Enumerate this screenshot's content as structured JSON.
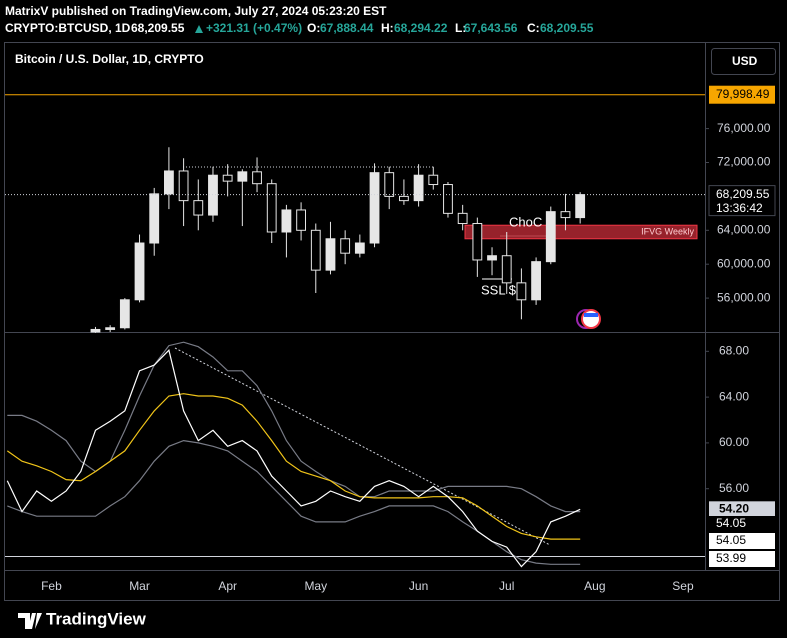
{
  "header": {
    "publisher": "MatrixV published on TradingView.com, July 27, 2024 05:23:20 EST",
    "symbol": "CRYPTO:BTCUSD, 1D",
    "price": "68,209.55",
    "change": "+321.31 (+0.47%)",
    "ohlc": [
      {
        "key": "O:",
        "value": "67,888.44"
      },
      {
        "key": "H:",
        "value": "68,294.22"
      },
      {
        "key": "L:",
        "value": "67,643.56"
      },
      {
        "key": "C:",
        "value": "68,209.55"
      }
    ],
    "legend": "Bitcoin / U.S. Dollar, 1D, CRYPTO",
    "currency": "USD"
  },
  "chart_data": [
    {
      "type": "candlestick",
      "color": "#e6e6e6",
      "categories": [
        null,
        null,
        null,
        "Feb",
        null,
        null,
        null,
        null,
        null,
        "Mar",
        null,
        null,
        null,
        null,
        null,
        "Apr",
        null,
        null,
        null,
        null,
        null,
        "May",
        null,
        null,
        null,
        null,
        null,
        null,
        "Jun",
        null,
        null,
        null,
        null,
        null,
        "Jul",
        null,
        null,
        null,
        null,
        null,
        "Aug",
        null,
        null,
        null,
        null,
        null,
        "Sep",
        null
      ],
      "open": [
        null,
        null,
        null,
        null,
        null,
        null,
        52000,
        52300,
        52500,
        55800,
        62500,
        68300,
        71000,
        67500,
        65800,
        70500,
        69800,
        70900,
        69500,
        63800,
        66400,
        64000,
        59300,
        63000,
        61300,
        62500,
        70800,
        68000,
        67500,
        70500,
        69400,
        66000,
        64800,
        60500,
        61000,
        57800,
        55800,
        60300,
        66200,
        65500,
        null,
        null,
        null,
        null,
        null,
        null,
        null,
        null
      ],
      "high": [
        null,
        null,
        null,
        null,
        null,
        null,
        52600,
        52800,
        56000,
        63500,
        69000,
        73800,
        72500,
        70000,
        71500,
        71800,
        71200,
        72600,
        70000,
        67000,
        67300,
        64800,
        65000,
        64000,
        63500,
        71900,
        71500,
        70000,
        71800,
        71500,
        69700,
        67000,
        65500,
        62000,
        63800,
        59500,
        60800,
        66800,
        68300,
        68500,
        null,
        null,
        null,
        null,
        null,
        null,
        null,
        null
      ],
      "low": [
        null,
        null,
        null,
        null,
        null,
        null,
        51900,
        52000,
        52300,
        55500,
        61000,
        66500,
        64500,
        64000,
        65000,
        68000,
        64500,
        68500,
        62500,
        60800,
        62800,
        56600,
        58800,
        60000,
        60800,
        62000,
        66500,
        67000,
        66800,
        68800,
        65500,
        64000,
        58500,
        58700,
        56500,
        53500,
        55200,
        60000,
        64000,
        64800,
        null,
        null,
        null,
        null,
        null,
        null,
        null,
        null
      ],
      "close": [
        null,
        null,
        null,
        null,
        null,
        null,
        52300,
        52500,
        55800,
        62500,
        68300,
        71000,
        67500,
        65800,
        70500,
        69800,
        70900,
        69500,
        63800,
        66400,
        64000,
        59300,
        63000,
        61300,
        62500,
        70800,
        68000,
        67500,
        70500,
        69400,
        66000,
        64800,
        60500,
        61000,
        57800,
        55800,
        60300,
        66200,
        65500,
        68209.55,
        null,
        null,
        null,
        null,
        null,
        null,
        null,
        null
      ],
      "last_price_label": "68,209.55",
      "countdown": "13:36:42",
      "ylim": [
        52000,
        86100
      ],
      "yticks": [
        {
          "value": 56000,
          "label": "56,000.00"
        },
        {
          "value": 60000,
          "label": "60,000.00"
        },
        {
          "value": 64000,
          "label": "64,000.00"
        },
        {
          "value": 72000,
          "label": "72,000.00"
        },
        {
          "value": 76000,
          "label": "76,000.00"
        }
      ],
      "hlines": [
        {
          "value": 79998.49,
          "label": "79,998.49",
          "color": "#f7a600"
        }
      ],
      "zone": {
        "label": "IFVG Weekly",
        "from": 63000,
        "to": 64600,
        "color": "#b22833"
      },
      "annotations": [
        "ChoC",
        "SSL $"
      ]
    },
    {
      "type": "line",
      "series": [
        {
          "color": "#787b86",
          "values": [
            62.4,
            62.4,
            61.9,
            61.1,
            60.2,
            58.4,
            57.5,
            58.4,
            61.1,
            64.1,
            66.8,
            68.5,
            68.8,
            68.4,
            67.5,
            66.3,
            66.3,
            65.0,
            62.8,
            60.2,
            58.4,
            57.5,
            56.7,
            56.2,
            55.3,
            55.3,
            55.8,
            55.8,
            55.8,
            55.8,
            56.2,
            56.2,
            56.2,
            56.2,
            56.2,
            56.0,
            55.3,
            54.5,
            54.0,
            54.0,
            null,
            null,
            null,
            null,
            null,
            null,
            null,
            null
          ]
        },
        {
          "color": "#787b86",
          "values": [
            54.5,
            54.0,
            53.6,
            53.6,
            53.6,
            53.6,
            53.6,
            54.5,
            55.3,
            56.7,
            58.4,
            59.7,
            60.2,
            60.0,
            59.7,
            59.3,
            58.4,
            57.5,
            56.2,
            54.9,
            53.6,
            53.1,
            53.1,
            53.1,
            53.6,
            54.0,
            54.5,
            54.5,
            54.5,
            54.5,
            54.0,
            53.1,
            52.3,
            51.4,
            50.5,
            49.8,
            49.5,
            49.4,
            49.4,
            49.4,
            null,
            null,
            null,
            null,
            null,
            null,
            null,
            null
          ]
        },
        {
          "color": "#f0c419",
          "values": [
            59.3,
            58.4,
            58.0,
            57.5,
            56.8,
            56.7,
            57.5,
            58.4,
            59.3,
            61.1,
            62.8,
            64.1,
            64.3,
            64.1,
            64.1,
            63.9,
            63.3,
            61.9,
            60.2,
            58.4,
            57.5,
            57.1,
            56.7,
            55.8,
            55.3,
            55.2,
            55.2,
            55.2,
            55.2,
            55.3,
            55.3,
            55.2,
            54.5,
            53.6,
            52.7,
            52.1,
            51.8,
            51.6,
            51.6,
            51.6,
            null,
            null,
            null,
            null,
            null,
            null,
            null,
            null
          ]
        },
        {
          "color": "#ffffff",
          "values": [
            56.7,
            54.0,
            55.8,
            54.9,
            55.8,
            57.5,
            61.1,
            61.9,
            62.8,
            66.3,
            66.8,
            68.1,
            62.8,
            60.2,
            61.1,
            59.7,
            60.2,
            59.3,
            57.1,
            55.8,
            54.5,
            54.9,
            55.8,
            55.3,
            54.9,
            56.2,
            56.7,
            56.2,
            55.3,
            56.2,
            55.3,
            54.0,
            52.3,
            51.4,
            50.9,
            49.2,
            50.5,
            53.1,
            53.6,
            54.2,
            null,
            null,
            null,
            null,
            null,
            null,
            null,
            null
          ],
          "last_label": "54.20"
        }
      ],
      "price_tags": [
        "54.05",
        "54.05",
        "53.99"
      ],
      "ylim": [
        48.9,
        69.6
      ],
      "yticks": [
        {
          "value": 56,
          "label": "56.00"
        },
        {
          "value": 60,
          "label": "60.00"
        },
        {
          "value": 64,
          "label": "64.00"
        },
        {
          "value": 68,
          "label": "68.00"
        }
      ]
    }
  ],
  "footer": {
    "brand": "TradingView"
  }
}
